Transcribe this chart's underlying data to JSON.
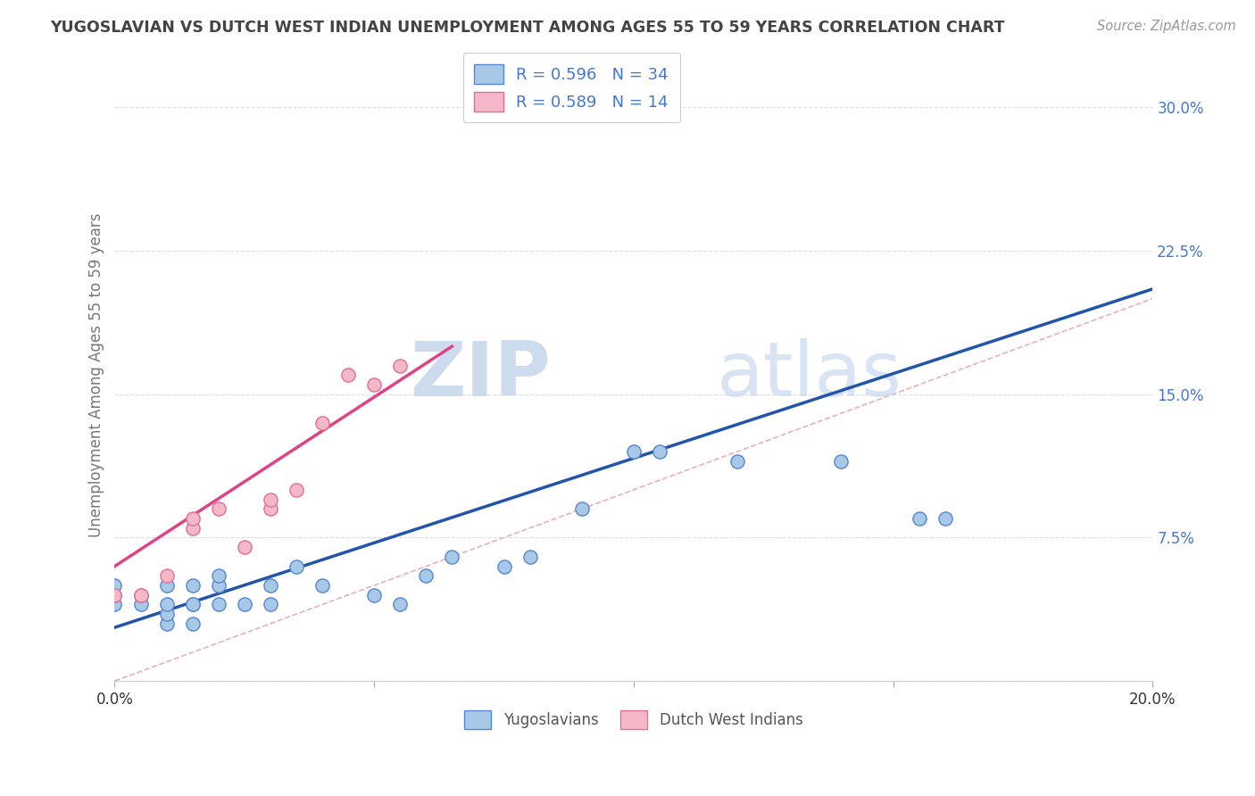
{
  "title": "YUGOSLAVIAN VS DUTCH WEST INDIAN UNEMPLOYMENT AMONG AGES 55 TO 59 YEARS CORRELATION CHART",
  "source_text": "Source: ZipAtlas.com",
  "ylabel": "Unemployment Among Ages 55 to 59 years",
  "xlim": [
    0.0,
    0.2
  ],
  "ylim": [
    0.0,
    0.32
  ],
  "xticks": [
    0.0,
    0.05,
    0.1,
    0.15,
    0.2
  ],
  "xticklabels": [
    "0.0%",
    "",
    "",
    "",
    "20.0%"
  ],
  "yticks": [
    0.0,
    0.075,
    0.15,
    0.225,
    0.3
  ],
  "yticklabels": [
    "",
    "7.5%",
    "15.0%",
    "22.5%",
    "30.0%"
  ],
  "blue_scatter_color": "#a8c8e8",
  "blue_scatter_edge": "#5588cc",
  "pink_scatter_color": "#f4b8c8",
  "pink_scatter_edge": "#e07090",
  "blue_line_color": "#2255aa",
  "pink_line_color": "#dd4488",
  "ref_line_color": "#e8b0b8",
  "legend_R1": "R = 0.596",
  "legend_N1": "N = 34",
  "legend_R2": "R = 0.589",
  "legend_N2": "N = 14",
  "legend_label1": "Yugoslavians",
  "legend_label2": "Dutch West Indians",
  "watermark_zip": "ZIP",
  "watermark_atlas": "atlas",
  "bg_color": "#ffffff",
  "grid_color": "#dddddd",
  "title_color": "#444444",
  "axis_label_color": "#777777",
  "tick_label_color": "#4477cc",
  "yugoslav_x": [
    0.0,
    0.0,
    0.0,
    0.005,
    0.005,
    0.01,
    0.01,
    0.01,
    0.01,
    0.015,
    0.015,
    0.015,
    0.015,
    0.02,
    0.02,
    0.02,
    0.025,
    0.03,
    0.03,
    0.035,
    0.04,
    0.05,
    0.055,
    0.06,
    0.065,
    0.075,
    0.08,
    0.09,
    0.1,
    0.105,
    0.12,
    0.14,
    0.155,
    0.16
  ],
  "yugoslav_y": [
    0.04,
    0.045,
    0.05,
    0.04,
    0.045,
    0.03,
    0.035,
    0.04,
    0.05,
    0.03,
    0.04,
    0.04,
    0.05,
    0.04,
    0.05,
    0.055,
    0.04,
    0.04,
    0.05,
    0.06,
    0.05,
    0.045,
    0.04,
    0.055,
    0.065,
    0.06,
    0.065,
    0.09,
    0.12,
    0.12,
    0.115,
    0.115,
    0.085,
    0.085
  ],
  "dutch_x": [
    0.0,
    0.005,
    0.01,
    0.015,
    0.015,
    0.02,
    0.025,
    0.03,
    0.03,
    0.035,
    0.04,
    0.045,
    0.05,
    0.055
  ],
  "dutch_y": [
    0.045,
    0.045,
    0.055,
    0.08,
    0.085,
    0.09,
    0.07,
    0.09,
    0.095,
    0.1,
    0.135,
    0.16,
    0.155,
    0.165
  ],
  "yugoslav_trend_x": [
    0.0,
    0.2
  ],
  "yugoslav_trend_y": [
    0.028,
    0.205
  ],
  "dutch_trend_x": [
    0.0,
    0.065
  ],
  "dutch_trend_y": [
    0.06,
    0.175
  ],
  "ref_line_x": [
    0.0,
    0.32
  ],
  "ref_line_y": [
    0.0,
    0.32
  ]
}
